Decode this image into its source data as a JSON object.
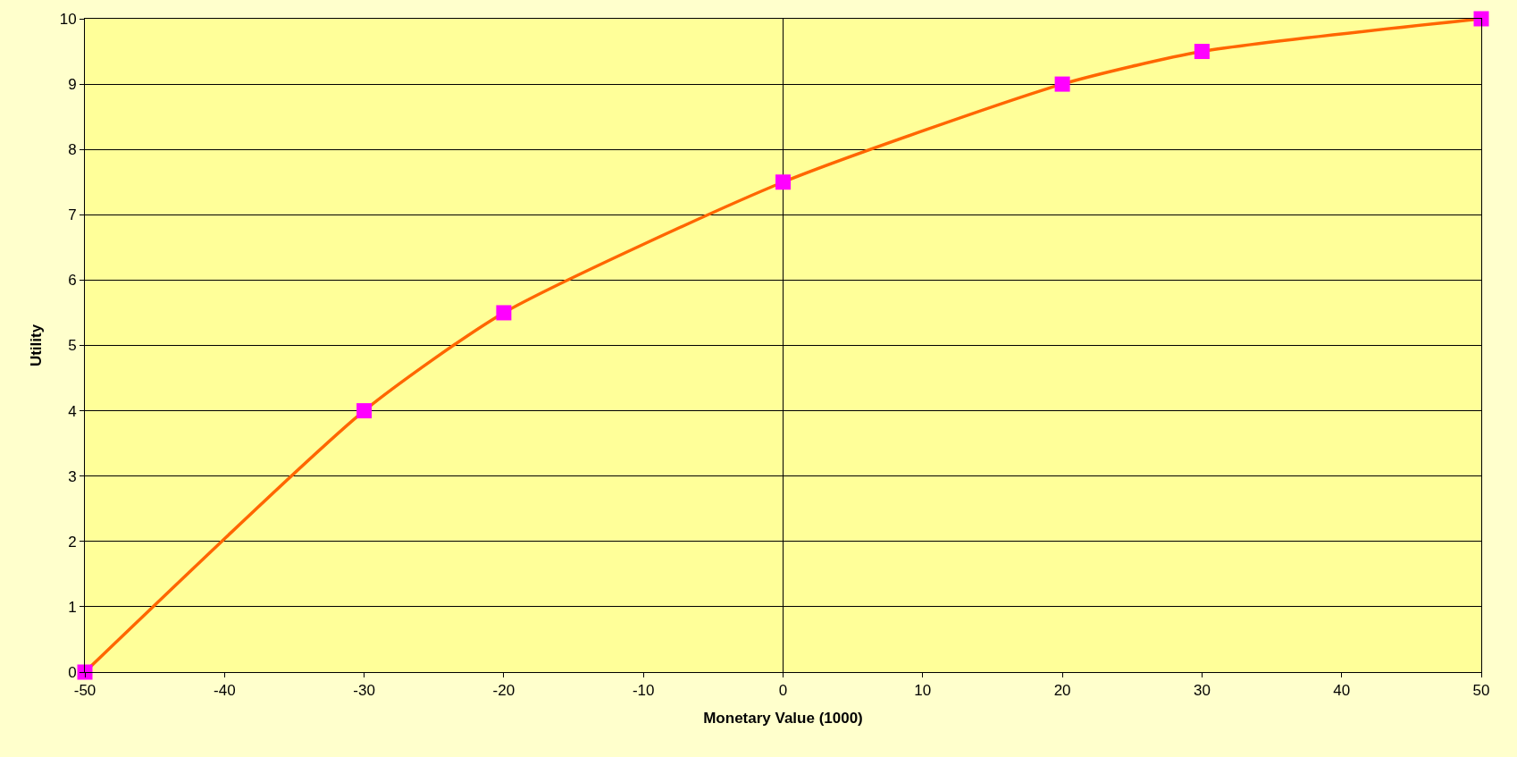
{
  "chart_data": {
    "type": "line",
    "xlabel": "Monetary Value (1000)",
    "ylabel": "Utility",
    "x": [
      -50,
      -30,
      -20,
      0,
      20,
      30,
      50
    ],
    "series": [
      {
        "color": "#ff6600",
        "colors": [
          "#ff00ff",
          "#ff00ff",
          "#ff00ff",
          "#ff00ff",
          "#ff00ff",
          "#ff00ff",
          "#ff00ff"
        ],
        "marker": "square",
        "values": [
          0,
          4,
          5.5,
          7.5,
          9,
          9.5,
          10
        ]
      }
    ],
    "xlim": [
      -50,
      50
    ],
    "xticks": [
      -50,
      -40,
      -30,
      -20,
      -10,
      0,
      10,
      20,
      30,
      40,
      50
    ],
    "ylim": [
      0,
      10
    ],
    "yticks": [
      0,
      1,
      2,
      3,
      4,
      5,
      6,
      7,
      8,
      9,
      10
    ],
    "ref_lines": [
      {
        "axis": "x",
        "value": 0,
        "color": "#000000"
      }
    ],
    "grid": "y"
  }
}
